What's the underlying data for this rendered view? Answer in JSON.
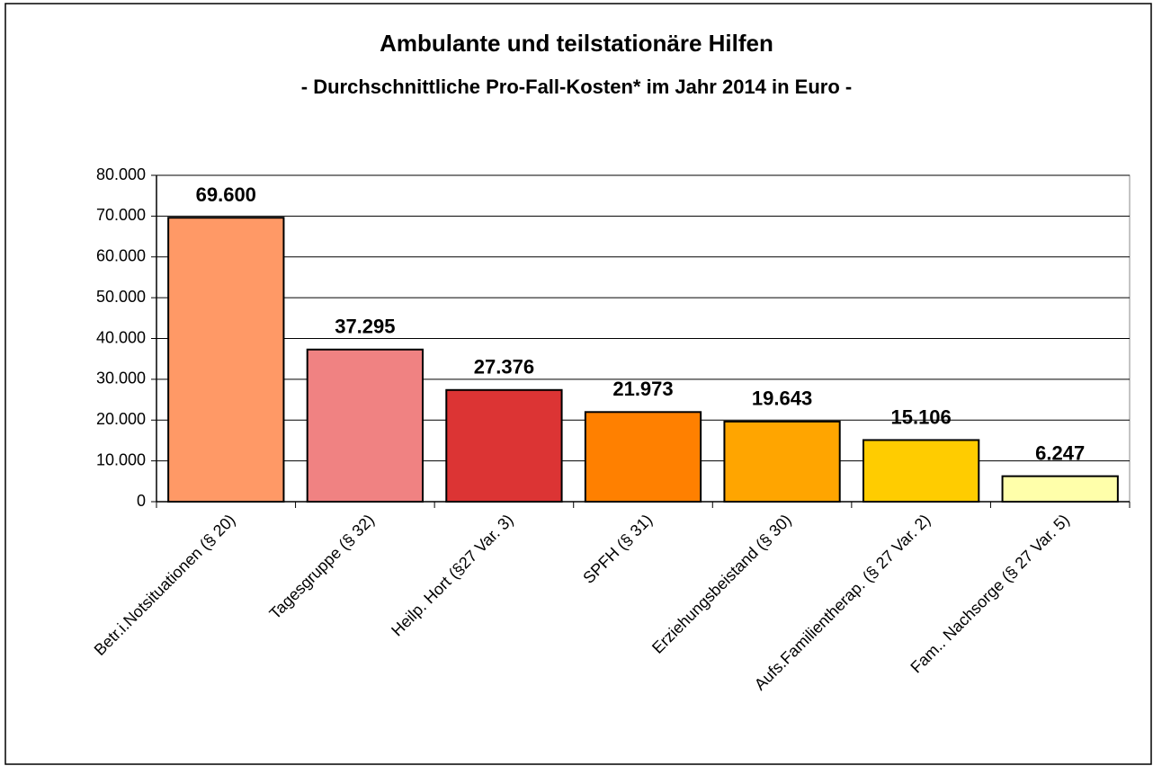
{
  "chart_data": {
    "type": "bar",
    "title": "Ambulante und teilstationäre Hilfen",
    "subtitle": "- Durchschnittliche Pro-Fall-Kosten* im Jahr 2014  in Euro -",
    "categories": [
      "Betr.i.Notsituationen (§ 20)",
      "Tagesgruppe (§ 32)",
      "Heilp. Hort (§27 Var. 3)",
      "SPFH (§ 31)",
      "Erziehungsbeistand (§ 30)",
      "Aufs.Familientherap. (§ 27 Var. 2)",
      "Fam.. Nachsorge (§ 27 Var. 5)"
    ],
    "values": [
      69600,
      37295,
      27376,
      21973,
      19643,
      15106,
      6247
    ],
    "value_labels": [
      "69.600",
      "37.295",
      "27.376",
      "21.973",
      "19.643",
      "15.106",
      "6.247"
    ],
    "colors": [
      "#FF9966",
      "#F08282",
      "#DC3434",
      "#FF8000",
      "#FFA500",
      "#FFCC00",
      "#FFFFAA"
    ],
    "ylim": [
      0,
      80000
    ],
    "yticks": [
      0,
      {
        "value": 10000,
        "label": "10.000"
      },
      {
        "value": 20000,
        "label": "20.000"
      },
      {
        "value": 30000,
        "label": "30.000"
      },
      {
        "value": 40000,
        "label": "40.000"
      },
      {
        "value": 50000,
        "label": "50.000"
      },
      {
        "value": 60000,
        "label": "60.000"
      },
      {
        "value": 70000,
        "label": "70.000"
      },
      {
        "value": 80000,
        "label": "80.000"
      }
    ],
    "grid": true
  }
}
